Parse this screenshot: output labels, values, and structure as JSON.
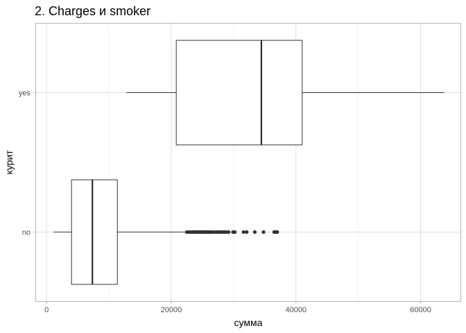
{
  "chart_data": {
    "type": "boxplot",
    "title": "2. Charges и smoker",
    "xlabel": "сумма",
    "ylabel": "курит",
    "xlim": [
      -1800,
      66500
    ],
    "x_ticks": [
      0,
      20000,
      40000,
      60000
    ],
    "x_tick_labels": [
      "0",
      "20000",
      "40000",
      "60000"
    ],
    "categories": [
      "no",
      "yes"
    ],
    "grid": true,
    "theme": "light",
    "boxes": [
      {
        "category": "no",
        "whisker_low": 1100,
        "q1": 4000,
        "median": 7350,
        "q3": 11350,
        "whisker_high": 22400,
        "outliers": [
          22500,
          22800,
          23100,
          23400,
          23600,
          23900,
          24100,
          24300,
          24500,
          24700,
          24900,
          25100,
          25300,
          25500,
          25700,
          25900,
          26100,
          26300,
          26600,
          27000,
          27300,
          27600,
          27900,
          28200,
          28500,
          28800,
          29200,
          29900,
          30200,
          31600,
          32100,
          33400,
          34800,
          36500,
          36800,
          37000
        ]
      },
      {
        "category": "yes",
        "whisker_low": 12800,
        "q1": 20800,
        "median": 34450,
        "q3": 41000,
        "whisker_high": 63800,
        "outliers": []
      }
    ]
  }
}
